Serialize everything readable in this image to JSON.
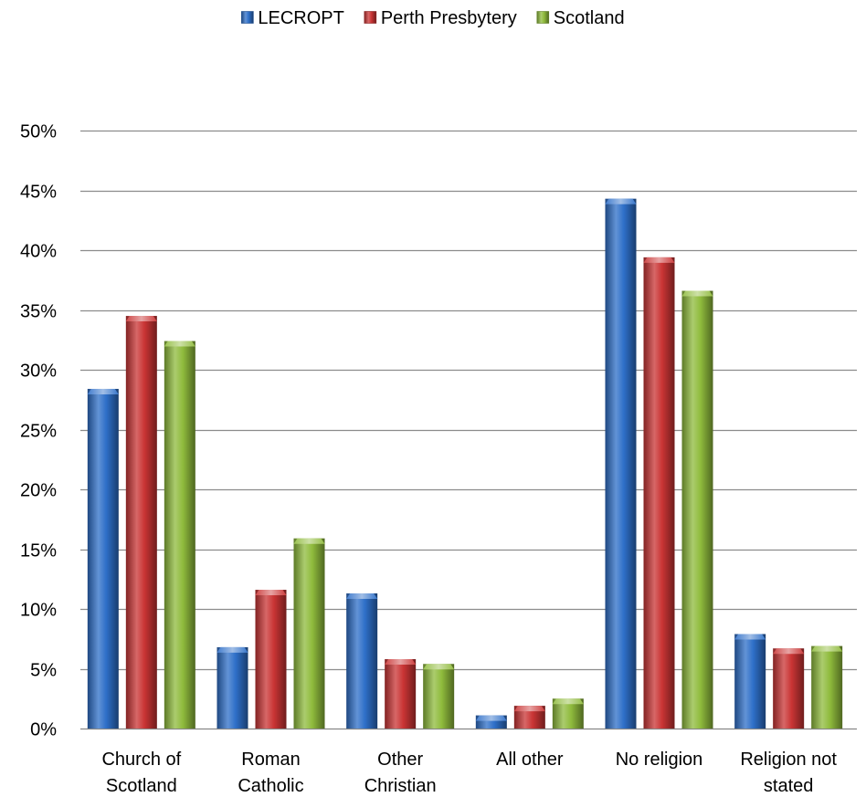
{
  "chart_data": {
    "type": "bar",
    "categories": [
      [
        "Church of",
        "Scotland"
      ],
      [
        "Roman",
        "Catholic"
      ],
      [
        "Other",
        "Christian"
      ],
      [
        "All other"
      ],
      [
        "No religion"
      ],
      [
        "Religion not",
        "stated"
      ]
    ],
    "series": [
      {
        "name": "LECROPT",
        "color": "#2E6FC8",
        "values": [
          0.284,
          0.068,
          0.113,
          0.011,
          0.443,
          0.079
        ]
      },
      {
        "name": "Perth Presbytery",
        "color": "#C93434",
        "values": [
          0.345,
          0.116,
          0.058,
          0.019,
          0.394,
          0.067
        ]
      },
      {
        "name": "Scotland",
        "color": "#8FBB3C",
        "values": [
          0.324,
          0.159,
          0.054,
          0.025,
          0.366,
          0.069
        ]
      }
    ],
    "ylim": [
      0,
      0.5
    ],
    "yticks": [
      "0%",
      "5%",
      "10%",
      "15%",
      "20%",
      "25%",
      "30%",
      "35%",
      "40%",
      "45%",
      "50%"
    ],
    "grid": true,
    "legend_position": "top-center"
  }
}
